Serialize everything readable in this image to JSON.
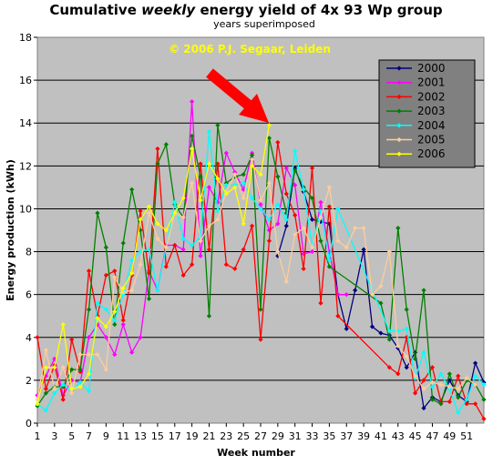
{
  "chart_data": {
    "type": "line",
    "title_pre": "Cumulative ",
    "title_em": "weekly",
    "title_post": "  energy yield of 4x 93 Wp group",
    "subtitle": "years superimposed",
    "xlabel": "Week number",
    "ylabel": "Energy production (kWh)",
    "copyright": "© 2006 P.J. Segaar, Leiden",
    "xlim": [
      1,
      53
    ],
    "ylim": [
      0,
      18
    ],
    "ytick_step": 2,
    "x_tick_labels": [
      1,
      3,
      5,
      7,
      9,
      11,
      13,
      15,
      17,
      19,
      21,
      23,
      25,
      27,
      29,
      31,
      33,
      35,
      37,
      39,
      41,
      43,
      45,
      47,
      49,
      51
    ],
    "plot_background": "#c0c0c0",
    "legend_background": "#808080",
    "legend_position": "top-right",
    "arrow_color": "#ff0000",
    "copyright_color": "#ffff00",
    "series": [
      {
        "name": "2000",
        "color": "#000080",
        "values": [
          [
            29,
            7.8
          ],
          [
            30,
            9.2
          ],
          [
            31,
            11.9
          ],
          [
            32,
            10.8
          ],
          [
            33,
            9.5
          ],
          [
            34,
            9.4
          ],
          [
            35,
            9.3
          ],
          [
            36,
            6.0
          ],
          [
            37,
            4.4
          ],
          [
            38,
            6.2
          ],
          [
            39,
            8.1
          ],
          [
            40,
            4.5
          ],
          [
            41,
            4.2
          ],
          [
            42,
            4.1
          ],
          [
            43,
            3.5
          ],
          [
            44,
            2.6
          ],
          [
            45,
            3.3
          ],
          [
            46,
            0.7
          ],
          [
            47,
            1.2
          ],
          [
            48,
            1.0
          ],
          [
            49,
            2.0
          ],
          [
            50,
            1.3
          ],
          [
            51,
            1.0
          ],
          [
            52,
            2.8
          ],
          [
            53,
            1.9
          ]
        ]
      },
      {
        "name": "2001",
        "color": "#ff00ff",
        "values": [
          [
            1,
            1.3
          ],
          [
            2,
            2.2
          ],
          [
            3,
            3.0
          ],
          [
            4,
            1.3
          ],
          [
            5,
            2.0
          ],
          [
            6,
            1.9
          ],
          [
            7,
            4.0
          ],
          [
            8,
            4.6
          ],
          [
            9,
            4.0
          ],
          [
            10,
            3.2
          ],
          [
            11,
            4.6
          ],
          [
            12,
            3.3
          ],
          [
            13,
            4.0
          ],
          [
            14,
            7.1
          ],
          [
            15,
            6.2
          ],
          [
            16,
            8.3
          ],
          [
            17,
            8.3
          ],
          [
            18,
            8.1
          ],
          [
            19,
            15.0
          ],
          [
            20,
            7.8
          ],
          [
            21,
            11.0
          ],
          [
            22,
            10.3
          ],
          [
            23,
            12.6
          ],
          [
            24,
            11.7
          ],
          [
            25,
            10.9
          ],
          [
            26,
            12.6
          ],
          [
            27,
            10.2
          ],
          [
            28,
            9.0
          ],
          [
            29,
            9.3
          ],
          [
            30,
            11.9
          ],
          [
            31,
            11.1
          ],
          [
            32,
            7.9
          ],
          [
            33,
            8.0
          ],
          [
            34,
            10.3
          ],
          [
            35,
            8.0
          ],
          [
            36,
            6.0
          ],
          [
            37,
            6.0
          ]
        ]
      },
      {
        "name": "2002",
        "color": "#ff0000",
        "values": [
          [
            1,
            4.0
          ],
          [
            2,
            1.6
          ],
          [
            3,
            2.7
          ],
          [
            4,
            1.1
          ],
          [
            5,
            3.9
          ],
          [
            6,
            2.4
          ],
          [
            7,
            7.1
          ],
          [
            8,
            5.0
          ],
          [
            9,
            6.9
          ],
          [
            10,
            7.1
          ],
          [
            11,
            4.8
          ],
          [
            12,
            6.9
          ],
          [
            13,
            9.9
          ],
          [
            14,
            7.0
          ],
          [
            15,
            12.8
          ],
          [
            16,
            7.3
          ],
          [
            17,
            8.3
          ],
          [
            18,
            6.9
          ],
          [
            19,
            7.4
          ],
          [
            20,
            12.1
          ],
          [
            21,
            8.1
          ],
          [
            22,
            12.1
          ],
          [
            23,
            7.4
          ],
          [
            24,
            7.2
          ],
          [
            25,
            8.1
          ],
          [
            26,
            9.2
          ],
          [
            27,
            3.9
          ],
          [
            28,
            8.5
          ],
          [
            29,
            13.1
          ],
          [
            30,
            10.7
          ],
          [
            31,
            9.7
          ],
          [
            32,
            7.2
          ],
          [
            33,
            11.9
          ],
          [
            34,
            5.6
          ],
          [
            35,
            10.1
          ],
          [
            36,
            5.0
          ],
          [
            42,
            2.6
          ],
          [
            43,
            2.3
          ],
          [
            44,
            4.0
          ],
          [
            45,
            1.4
          ],
          [
            46,
            2.0
          ],
          [
            47,
            2.6
          ],
          [
            48,
            1.0
          ],
          [
            49,
            1.0
          ],
          [
            50,
            2.2
          ],
          [
            51,
            0.9
          ],
          [
            52,
            0.9
          ],
          [
            53,
            0.2
          ]
        ]
      },
      {
        "name": "2003",
        "color": "#008000",
        "values": [
          [
            1,
            0.8
          ],
          [
            2,
            1.4
          ],
          [
            3,
            1.7
          ],
          [
            4,
            1.7
          ],
          [
            5,
            2.5
          ],
          [
            6,
            2.5
          ],
          [
            7,
            5.3
          ],
          [
            8,
            9.8
          ],
          [
            9,
            8.2
          ],
          [
            10,
            4.6
          ],
          [
            11,
            8.4
          ],
          [
            12,
            10.9
          ],
          [
            13,
            9.0
          ],
          [
            14,
            5.8
          ],
          [
            15,
            12.1
          ],
          [
            16,
            13.0
          ],
          [
            17,
            10.2
          ],
          [
            18,
            9.6
          ],
          [
            19,
            13.4
          ],
          [
            20,
            11.5
          ],
          [
            21,
            5.0
          ],
          [
            22,
            13.9
          ],
          [
            23,
            11.2
          ],
          [
            24,
            11.5
          ],
          [
            25,
            11.6
          ],
          [
            26,
            12.5
          ],
          [
            27,
            5.3
          ],
          [
            28,
            13.3
          ],
          [
            29,
            11.5
          ],
          [
            30,
            9.8
          ],
          [
            31,
            11.8
          ],
          [
            32,
            11.0
          ],
          [
            33,
            10.5
          ],
          [
            34,
            8.5
          ],
          [
            35,
            7.3
          ],
          [
            41,
            5.6
          ],
          [
            42,
            3.9
          ],
          [
            43,
            9.1
          ],
          [
            44,
            5.3
          ],
          [
            45,
            3.0
          ],
          [
            46,
            6.2
          ],
          [
            47,
            1.1
          ],
          [
            48,
            0.9
          ],
          [
            49,
            2.3
          ],
          [
            50,
            1.2
          ],
          [
            51,
            2.0
          ],
          [
            52,
            1.8
          ],
          [
            53,
            1.1
          ]
        ]
      },
      {
        "name": "2004",
        "color": "#00ffff",
        "values": [
          [
            1,
            0.9
          ],
          [
            2,
            0.6
          ],
          [
            3,
            1.4
          ],
          [
            4,
            1.8
          ],
          [
            5,
            1.5
          ],
          [
            6,
            1.9
          ],
          [
            7,
            1.5
          ],
          [
            8,
            5.6
          ],
          [
            9,
            5.3
          ],
          [
            10,
            4.8
          ],
          [
            11,
            6.0
          ],
          [
            12,
            7.6
          ],
          [
            13,
            8.0
          ],
          [
            14,
            8.1
          ],
          [
            15,
            6.2
          ],
          [
            16,
            8.2
          ],
          [
            17,
            10.3
          ],
          [
            18,
            8.6
          ],
          [
            19,
            8.3
          ],
          [
            20,
            8.7
          ],
          [
            21,
            13.6
          ],
          [
            22,
            9.9
          ],
          [
            23,
            11.1
          ],
          [
            24,
            11.1
          ],
          [
            25,
            11.2
          ],
          [
            26,
            10.5
          ],
          [
            27,
            10.0
          ],
          [
            28,
            9.5
          ],
          [
            29,
            10.2
          ],
          [
            30,
            9.5
          ],
          [
            31,
            12.7
          ],
          [
            32,
            10.9
          ],
          [
            33,
            8.3
          ],
          [
            34,
            9.9
          ],
          [
            35,
            7.6
          ],
          [
            36,
            10.0
          ],
          [
            42,
            4.3
          ],
          [
            43,
            4.3
          ],
          [
            44,
            4.4
          ],
          [
            45,
            2.1
          ],
          [
            46,
            3.3
          ],
          [
            47,
            1.7
          ],
          [
            48,
            2.3
          ],
          [
            49,
            1.6
          ],
          [
            50,
            0.5
          ],
          [
            51,
            1.1
          ],
          [
            52,
            2.2
          ],
          [
            53,
            1.8
          ]
        ]
      },
      {
        "name": "2005",
        "color": "#ffcc99",
        "values": [
          [
            1,
            1.1
          ],
          [
            2,
            3.4
          ],
          [
            3,
            1.6
          ],
          [
            4,
            2.6
          ],
          [
            5,
            1.4
          ],
          [
            6,
            3.2
          ],
          [
            7,
            3.2
          ],
          [
            8,
            3.2
          ],
          [
            9,
            2.5
          ],
          [
            10,
            6.8
          ],
          [
            11,
            6.1
          ],
          [
            12,
            6.2
          ],
          [
            13,
            7.4
          ],
          [
            14,
            9.8
          ],
          [
            15,
            8.6
          ],
          [
            16,
            8.2
          ],
          [
            17,
            9.8
          ],
          [
            18,
            9.6
          ],
          [
            19,
            11.2
          ],
          [
            20,
            8.5
          ],
          [
            21,
            9.2
          ],
          [
            22,
            9.5
          ],
          [
            23,
            10.8
          ],
          [
            24,
            11.6
          ],
          [
            25,
            10.5
          ],
          [
            26,
            12.3
          ],
          [
            27,
            10.4
          ],
          [
            28,
            11.2
          ],
          [
            29,
            8.0
          ],
          [
            30,
            6.6
          ],
          [
            31,
            8.8
          ],
          [
            32,
            9.1
          ],
          [
            33,
            8.2
          ],
          [
            34,
            9.6
          ],
          [
            35,
            11.0
          ],
          [
            36,
            8.5
          ],
          [
            37,
            8.2
          ],
          [
            38,
            9.1
          ],
          [
            39,
            9.1
          ],
          [
            40,
            6.0
          ],
          [
            41,
            6.4
          ],
          [
            42,
            8.0
          ],
          [
            43,
            3.6
          ],
          [
            44,
            3.1
          ],
          [
            45,
            2.2
          ],
          [
            46,
            1.6
          ],
          [
            47,
            1.9
          ],
          [
            48,
            1.8
          ],
          [
            49,
            1.7
          ],
          [
            50,
            1.6
          ],
          [
            51,
            2.1
          ],
          [
            52,
            1.8
          ]
        ]
      },
      {
        "name": "2006",
        "color": "#ffff00",
        "values": [
          [
            1,
            0.9
          ],
          [
            2,
            2.6
          ],
          [
            3,
            2.6
          ],
          [
            4,
            4.6
          ],
          [
            5,
            1.6
          ],
          [
            6,
            1.7
          ],
          [
            7,
            2.3
          ],
          [
            8,
            4.9
          ],
          [
            9,
            4.5
          ],
          [
            10,
            5.2
          ],
          [
            11,
            6.3
          ],
          [
            12,
            7.0
          ],
          [
            13,
            9.5
          ],
          [
            14,
            10.1
          ],
          [
            15,
            9.3
          ],
          [
            16,
            9.0
          ],
          [
            17,
            9.8
          ],
          [
            18,
            10.5
          ],
          [
            19,
            12.8
          ],
          [
            20,
            10.4
          ],
          [
            21,
            12.1
          ],
          [
            22,
            11.4
          ],
          [
            23,
            10.7
          ],
          [
            24,
            11.0
          ],
          [
            25,
            9.3
          ],
          [
            26,
            12.0
          ],
          [
            27,
            11.6
          ],
          [
            28,
            13.9
          ]
        ]
      }
    ]
  }
}
